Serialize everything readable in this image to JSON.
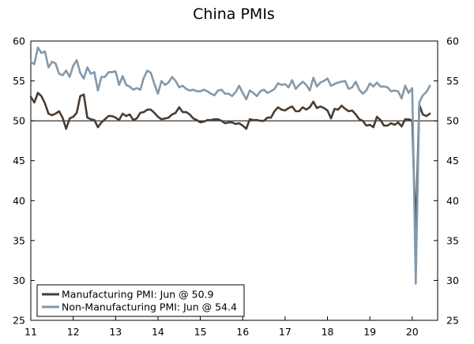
{
  "chart_data": {
    "type": "line",
    "title": "China PMIs",
    "xlabel": "",
    "ylabel": "",
    "x_ticks": [
      "11",
      "12",
      "13",
      "14",
      "15",
      "16",
      "17",
      "18",
      "19",
      "20"
    ],
    "x_range": [
      2011.0,
      2020.6
    ],
    "ylim": [
      25,
      60
    ],
    "y_ticks": [
      25,
      30,
      35,
      40,
      45,
      50,
      55,
      60
    ],
    "reference_line": 50,
    "grid": false,
    "legend_position": "bottom-left",
    "series": [
      {
        "name": "Manufacturing PMI: Jun @ 50.9",
        "color": "#4a3c31",
        "x_start": 2011.0,
        "step": 0.0833333,
        "values": [
          53.0,
          52.3,
          53.5,
          53.1,
          52.2,
          50.9,
          50.7,
          50.9,
          51.2,
          50.4,
          49.0,
          50.3,
          50.5,
          51.0,
          53.1,
          53.3,
          50.4,
          50.2,
          50.1,
          49.2,
          49.8,
          50.2,
          50.6,
          50.6,
          50.4,
          50.1,
          50.9,
          50.6,
          50.8,
          50.1,
          50.3,
          51.0,
          51.1,
          51.4,
          51.4,
          51.0,
          50.5,
          50.2,
          50.3,
          50.4,
          50.8,
          51.0,
          51.7,
          51.1,
          51.1,
          50.8,
          50.3,
          50.1,
          49.8,
          49.9,
          50.1,
          50.1,
          50.2,
          50.2,
          50.0,
          49.7,
          49.8,
          49.8,
          49.6,
          49.7,
          49.4,
          49.0,
          50.2,
          50.1,
          50.1,
          50.0,
          50.0,
          50.4,
          50.4,
          51.2,
          51.7,
          51.4,
          51.3,
          51.6,
          51.8,
          51.2,
          51.2,
          51.7,
          51.4,
          51.7,
          52.4,
          51.6,
          51.8,
          51.6,
          51.3,
          50.3,
          51.5,
          51.4,
          51.9,
          51.5,
          51.2,
          51.3,
          50.8,
          50.2,
          50.0,
          49.4,
          49.5,
          49.2,
          50.5,
          50.1,
          49.4,
          49.4,
          49.7,
          49.5,
          49.8,
          49.3,
          50.2,
          50.2,
          50.0,
          35.7,
          52.0,
          50.8,
          50.6,
          50.9
        ]
      },
      {
        "name": "Non-Manufacturing PMI: Jun @ 54.4",
        "color": "#8399ab",
        "x_start": 2011.0,
        "step": 0.0833333,
        "values": [
          57.4,
          57.1,
          59.2,
          58.5,
          58.7,
          56.7,
          57.4,
          57.2,
          55.9,
          55.7,
          56.3,
          55.5,
          56.9,
          57.6,
          56.0,
          55.3,
          56.7,
          55.9,
          56.1,
          53.8,
          55.5,
          55.5,
          56.1,
          56.1,
          56.2,
          54.5,
          55.6,
          54.5,
          54.3,
          53.9,
          54.1,
          53.9,
          55.4,
          56.3,
          56.0,
          54.6,
          53.4,
          55.0,
          54.5,
          54.8,
          55.5,
          55.0,
          54.2,
          54.4,
          54.0,
          53.8,
          53.9,
          53.7,
          53.7,
          53.9,
          53.7,
          53.4,
          53.2,
          53.8,
          53.9,
          53.4,
          53.4,
          53.1,
          53.6,
          54.4,
          53.5,
          52.7,
          53.8,
          53.5,
          53.1,
          53.7,
          53.9,
          53.5,
          53.7,
          54.0,
          54.7,
          54.5,
          54.6,
          54.2,
          55.1,
          54.0,
          54.5,
          54.9,
          54.5,
          53.8,
          55.4,
          54.3,
          54.8,
          55.0,
          55.3,
          54.4,
          54.6,
          54.8,
          54.9,
          55.0,
          54.0,
          54.2,
          54.9,
          53.9,
          53.4,
          53.8,
          54.7,
          54.3,
          54.8,
          54.3,
          54.3,
          54.2,
          53.7,
          53.8,
          53.7,
          52.8,
          54.4,
          53.5,
          54.1,
          29.6,
          52.3,
          53.2,
          53.6,
          54.4
        ]
      }
    ]
  }
}
